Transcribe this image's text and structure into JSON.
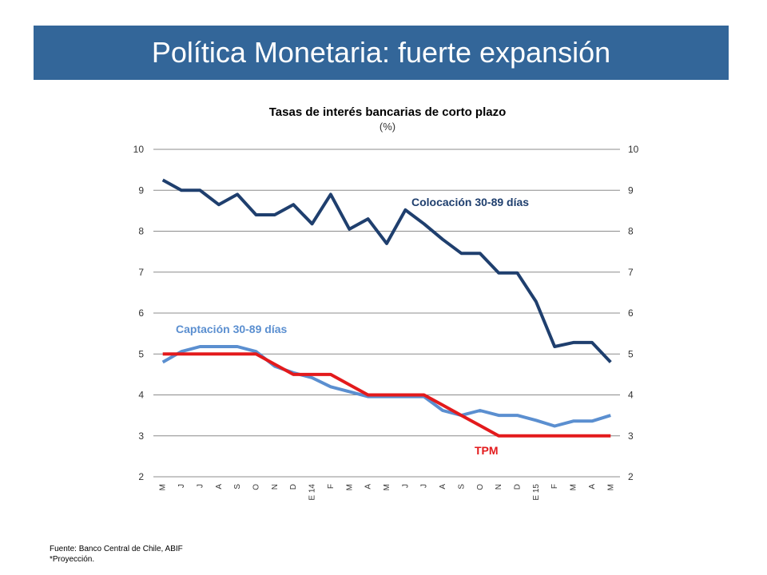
{
  "slide": {
    "title": "Política Monetaria: fuerte expansión",
    "footer": [
      "Fuente: Banco Central de Chile, ABIF",
      "*Proyección."
    ],
    "colors": {
      "title_bar": "#336699",
      "title_text": "#ffffff"
    }
  },
  "chart_data": {
    "type": "line",
    "title": "Tasas de interés bancarias de corto plazo",
    "subtitle": "(%)",
    "categories": [
      "M",
      "J",
      "J",
      "A",
      "S",
      "O",
      "N",
      "D",
      "E 14",
      "F",
      "M",
      "A",
      "M",
      "J",
      "J",
      "A",
      "S",
      "O",
      "N",
      "D",
      "E 15",
      "F",
      "M",
      "A",
      "M"
    ],
    "ylim": [
      2,
      10
    ],
    "yticks": [
      2,
      3,
      4,
      5,
      6,
      7,
      8,
      9,
      10
    ],
    "secondary_axis": true,
    "grid": true,
    "series": [
      {
        "name": "Colocación 30-89 días",
        "color": "#1f3f6e",
        "values": [
          9.25,
          9.0,
          9.0,
          8.65,
          8.9,
          8.4,
          8.4,
          8.65,
          8.18,
          8.9,
          8.05,
          8.3,
          7.7,
          8.52,
          8.18,
          7.8,
          7.46,
          7.46,
          6.98,
          6.98,
          6.28,
          5.18,
          5.28,
          5.28,
          4.8
        ]
      },
      {
        "name": "Captación 30-89 días",
        "color": "#5b8fd0",
        "values": [
          4.8,
          5.06,
          5.18,
          5.18,
          5.18,
          5.06,
          4.7,
          4.54,
          4.42,
          4.2,
          4.08,
          3.96,
          3.96,
          3.96,
          3.96,
          3.62,
          3.5,
          3.62,
          3.5,
          3.5,
          3.38,
          3.24,
          3.36,
          3.36,
          3.5
        ]
      },
      {
        "name": "TPM",
        "color": "#e31a1c",
        "values": [
          5.0,
          5.0,
          5.0,
          5.0,
          5.0,
          5.0,
          4.75,
          4.5,
          4.5,
          4.5,
          4.25,
          4.0,
          4.0,
          4.0,
          4.0,
          3.75,
          3.5,
          3.25,
          3.0,
          3.0,
          3.0,
          3.0,
          3.0,
          3.0,
          3.0
        ]
      }
    ]
  }
}
